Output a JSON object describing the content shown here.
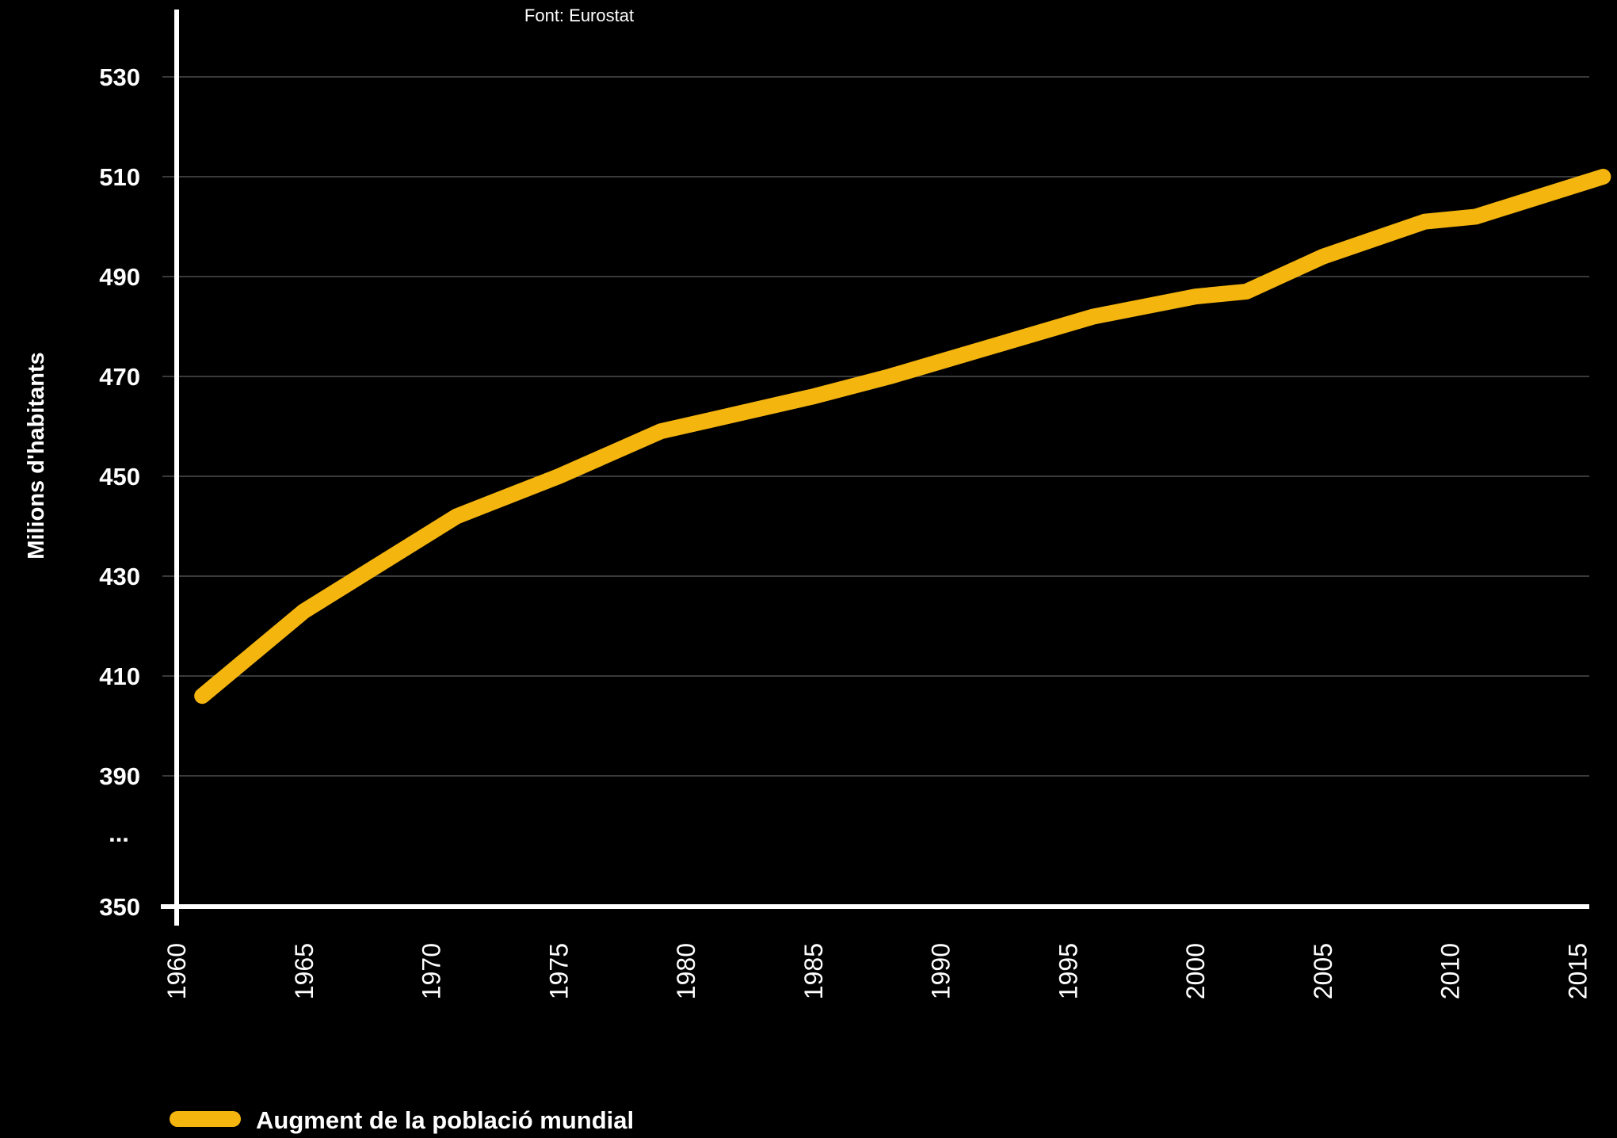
{
  "chart_data": {
    "type": "line",
    "source": "Font: Eurostat",
    "ylabel": "Milions d'habitants",
    "xlabel": "",
    "ylim": [
      350,
      540
    ],
    "y_ticks": [
      {
        "value": 350,
        "label": "350"
      },
      {
        "value": 390,
        "label": "390"
      },
      {
        "value": 410,
        "label": "410"
      },
      {
        "value": 430,
        "label": "430"
      },
      {
        "value": 450,
        "label": "450"
      },
      {
        "value": 470,
        "label": "470"
      },
      {
        "value": 490,
        "label": "490"
      },
      {
        "value": 510,
        "label": "510"
      },
      {
        "value": 530,
        "label": "530"
      }
    ],
    "axis_break_symbol": "...",
    "xlim": [
      1960,
      2016
    ],
    "x_ticks": [
      "1960",
      "1965",
      "1970",
      "1975",
      "1980",
      "1985",
      "1990",
      "1995",
      "2000",
      "2005",
      "2010",
      "2015"
    ],
    "grid": true,
    "legend_position": "bottom-left",
    "series": [
      {
        "name": "Augment de la població mundial",
        "color": "#f5b50f",
        "points": [
          {
            "x": 1961,
            "y": 406
          },
          {
            "x": 1965,
            "y": 423
          },
          {
            "x": 1971,
            "y": 442
          },
          {
            "x": 1975,
            "y": 450
          },
          {
            "x": 1979,
            "y": 459
          },
          {
            "x": 1985,
            "y": 466
          },
          {
            "x": 1988,
            "y": 470
          },
          {
            "x": 1992,
            "y": 476
          },
          {
            "x": 1996,
            "y": 482
          },
          {
            "x": 2000,
            "y": 486
          },
          {
            "x": 2002,
            "y": 487
          },
          {
            "x": 2005,
            "y": 494
          },
          {
            "x": 2009,
            "y": 501
          },
          {
            "x": 2011,
            "y": 502
          },
          {
            "x": 2016,
            "y": 510
          }
        ]
      }
    ]
  },
  "colors": {
    "background": "#000000",
    "axis": "#ffffff",
    "grid": "#3a3a3a",
    "text": "#ffffff"
  }
}
